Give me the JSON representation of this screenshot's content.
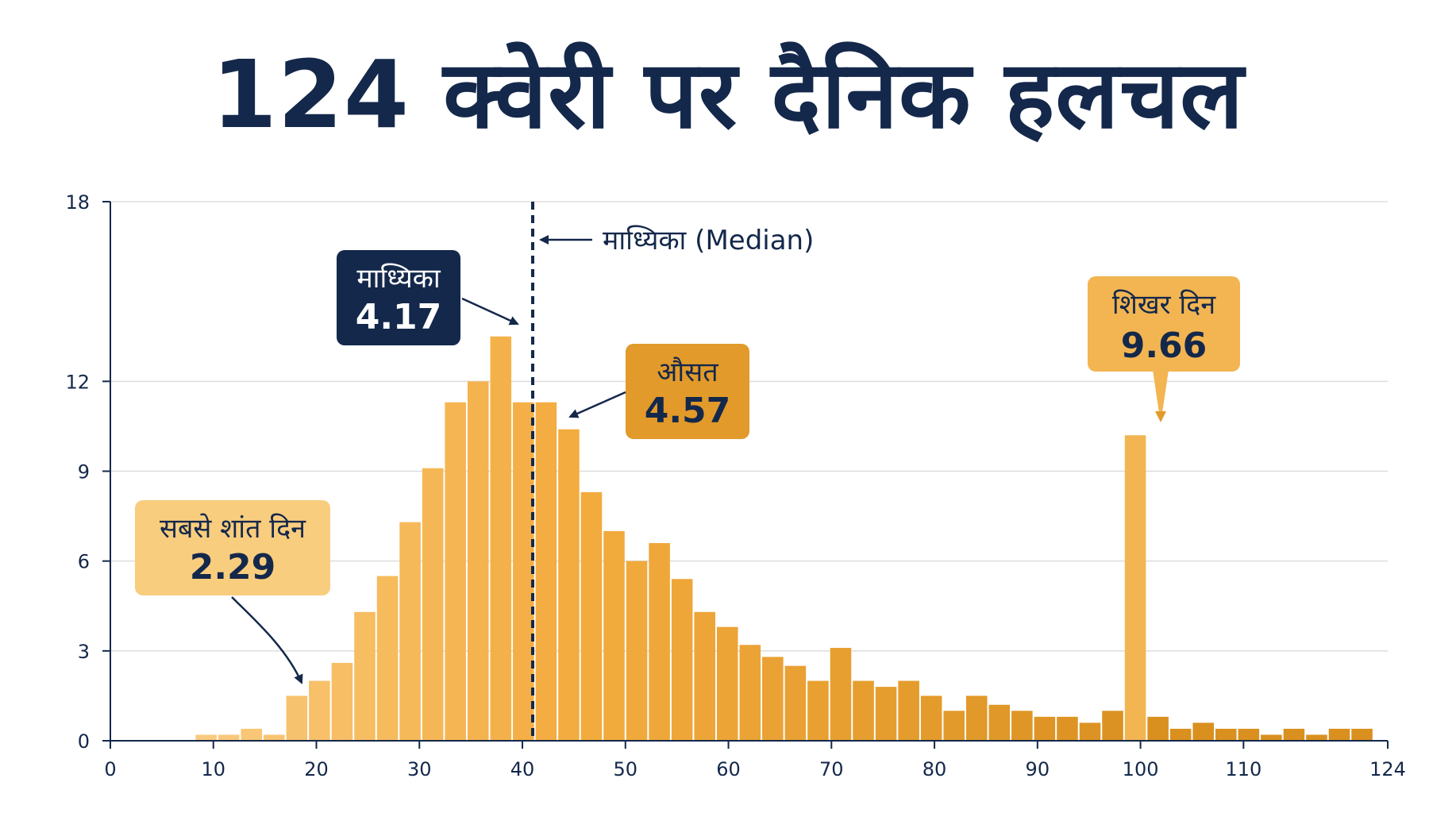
{
  "title": "124 क्वेरी पर दैनिक हलचल",
  "colors": {
    "navy": "#14284b",
    "bar_light": "#f9ca7d",
    "bar_mid": "#f3ac3f",
    "bar_dark": "#d9901f",
    "callout_light": "#f9cd7e",
    "callout_mid": "#f2b552",
    "callout_dark": "#e29a2a",
    "grid": "#dddddd"
  },
  "median_line_label": "माध्यिका (Median)",
  "callouts": {
    "median": {
      "label": "माध्यिका",
      "value": "4.17"
    },
    "mean": {
      "label": "औसत",
      "value": "4.57"
    },
    "peak": {
      "label": "शिखर दिन",
      "value": "9.66"
    },
    "quietest": {
      "label": "सबसे शांत दिन",
      "value": "2.29"
    }
  },
  "chart_data": {
    "type": "bar",
    "title": "124 क्वेरी पर दैनिक हलचल",
    "xlabel": "",
    "ylabel": "",
    "xlim": [
      0,
      124
    ],
    "ylim": [
      0,
      18
    ],
    "x_ticks": [
      "0",
      "10",
      "20",
      "30",
      "40",
      "50",
      "60",
      "70",
      "80",
      "90",
      "100",
      "110",
      "124"
    ],
    "y_ticks": [
      "0",
      "3",
      "6",
      "9",
      "12",
      "18"
    ],
    "bin_width": 2.2,
    "bin_starts": [
      8.2,
      10.4,
      12.6,
      14.8,
      17.0,
      19.2,
      21.4,
      23.6,
      25.8,
      28.0,
      30.2,
      32.4,
      34.6,
      36.8,
      39.0,
      41.2,
      43.4,
      45.6,
      47.8,
      50.0,
      52.2,
      54.4,
      56.6,
      58.8,
      61.0,
      63.2,
      65.4,
      67.6,
      69.8,
      72.0,
      74.2,
      76.4,
      78.6,
      80.8,
      83.0,
      85.2,
      87.4,
      89.6,
      91.8,
      94.0,
      96.2,
      98.4,
      100.6,
      102.8,
      105.0,
      107.2,
      109.4,
      111.6,
      113.8,
      116.0,
      118.2,
      120.4
    ],
    "values": [
      0.2,
      0.2,
      0.4,
      0.2,
      1.5,
      2.0,
      2.6,
      4.3,
      5.5,
      7.3,
      9.1,
      11.3,
      12.0,
      13.5,
      11.3,
      11.3,
      10.4,
      8.3,
      7.0,
      6.0,
      6.6,
      5.4,
      4.3,
      3.8,
      3.2,
      2.8,
      2.5,
      2.0,
      3.1,
      2.0,
      1.8,
      2.0,
      1.5,
      1.0,
      1.5,
      1.2,
      1.0,
      0.8,
      0.8,
      0.6,
      1.0,
      10.2,
      0.8,
      0.4,
      0.6,
      0.4,
      0.4,
      0.2,
      0.4,
      0.2,
      0.4,
      0.4
    ],
    "median_x": 41,
    "grid": true,
    "legend": "none"
  }
}
